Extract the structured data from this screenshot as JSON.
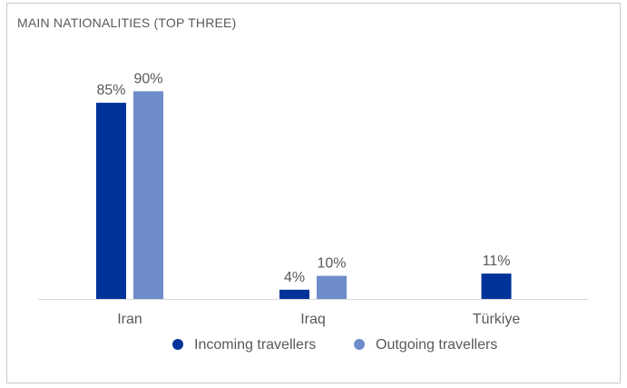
{
  "chart_data": {
    "type": "bar",
    "title": "MAIN NATIONALITIES (TOP THREE)",
    "categories": [
      "Iran",
      "Iraq",
      "Türkiye"
    ],
    "series": [
      {
        "name": "Incoming travellers",
        "color": "#00339a",
        "values": [
          85,
          4,
          11
        ],
        "labels": [
          "85%",
          "4%",
          "11%"
        ]
      },
      {
        "name": "Outgoing travellers",
        "color": "#6d8cc9",
        "values": [
          90,
          10,
          null
        ],
        "labels": [
          "90%",
          "10%",
          ""
        ]
      }
    ],
    "ylim": [
      0,
      100
    ],
    "unit": "%",
    "grid": false,
    "legend": "bottom"
  }
}
